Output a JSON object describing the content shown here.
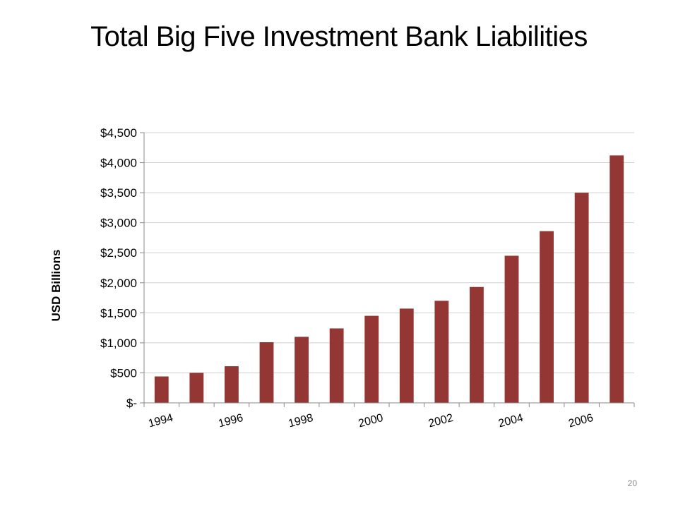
{
  "slide": {
    "title": "Total Big Five Investment Bank Liabilities",
    "page_number": "20"
  },
  "chart_data": {
    "type": "bar",
    "title": "Total Big Five Investment Bank Liabilities",
    "xlabel": "",
    "ylabel": "USD Billions",
    "categories": [
      "1994",
      "1995",
      "1996",
      "1997",
      "1998",
      "1999",
      "2000",
      "2001",
      "2002",
      "2003",
      "2004",
      "2005",
      "2006",
      "2007"
    ],
    "x_tick_labels": [
      "1994",
      "",
      "1996",
      "",
      "1998",
      "",
      "2000",
      "",
      "2002",
      "",
      "2004",
      "",
      "2006",
      ""
    ],
    "values": [
      440,
      500,
      610,
      1010,
      1100,
      1240,
      1450,
      1570,
      1700,
      1930,
      2450,
      2860,
      3500,
      4120
    ],
    "y_ticks": [
      0,
      500,
      1000,
      1500,
      2000,
      2500,
      3000,
      3500,
      4000,
      4500
    ],
    "y_tick_labels": [
      "$-",
      "$500",
      "$1,000",
      "$1,500",
      "$2,000",
      "$2,500",
      "$3,000",
      "$3,500",
      "$4,000",
      "$4,500"
    ],
    "ylim": [
      0,
      4500
    ],
    "grid": true,
    "legend": "none",
    "colors": {
      "bar": "#943634",
      "grid": "#d0d0d0",
      "axis": "#8a8a8a"
    }
  }
}
